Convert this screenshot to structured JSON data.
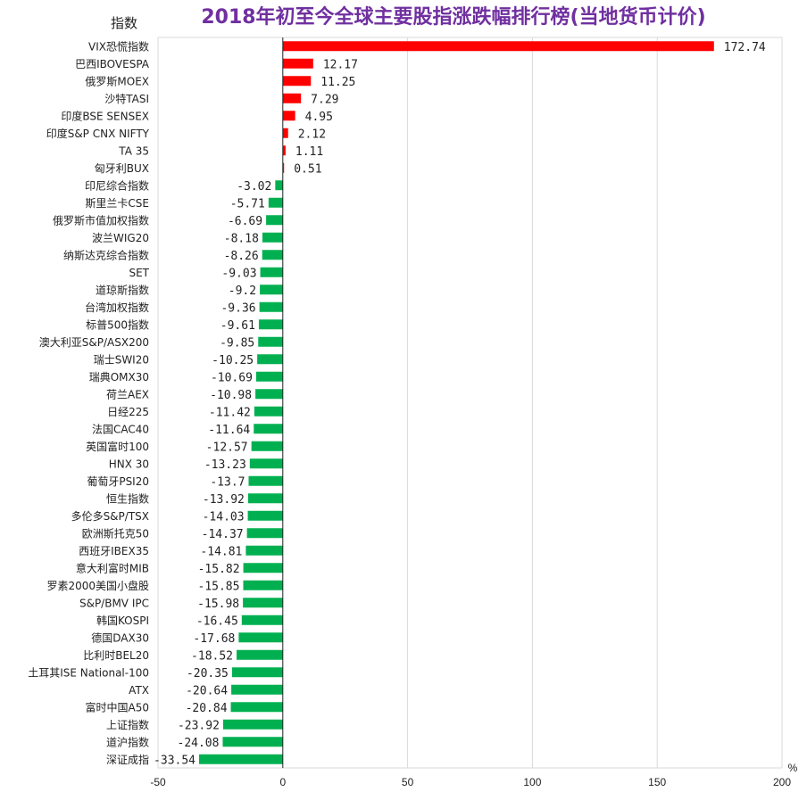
{
  "chart_data": {
    "type": "bar",
    "orientation": "horizontal",
    "title": "2018年初至今全球主要股指涨跌幅排行榜(当地货币计价)",
    "ylabel": "指数",
    "xlabel": "%",
    "xlim": [
      -50,
      200
    ],
    "xticks": [
      -50,
      0,
      50,
      100,
      150,
      200
    ],
    "grid": "vertical",
    "colors": {
      "positive": "#ff0000",
      "negative": "#00b050",
      "title": "#7030a0"
    },
    "categories": [
      "VIX恐慌指数",
      "巴西IBOVESPA",
      "俄罗斯MOEX",
      "沙特TASI",
      "印度BSE SENSEX",
      "印度S&P CNX NIFTY",
      "TA 35",
      "匈牙利BUX",
      "印尼综合指数",
      "斯里兰卡CSE",
      "俄罗斯市值加权指数",
      "波兰WIG20",
      "纳斯达克综合指数",
      "SET",
      "道琼斯指数",
      "台湾加权指数",
      "标普500指数",
      "澳大利亚S&P/ASX200",
      "瑞士SWI20",
      "瑞典OMX30",
      "荷兰AEX",
      "日经225",
      "法国CAC40",
      "英国富时100",
      "HNX 30",
      "葡萄牙PSI20",
      "恒生指数",
      "多伦多S&P/TSX",
      "欧洲斯托克50",
      "西班牙IBEX35",
      "意大利富时MIB",
      "罗素2000美国小盘股",
      "S&P/BMV IPC",
      "韩国KOSPI",
      "德国DAX30",
      "比利时BEL20",
      "土耳其ISE National-100",
      "ATX",
      "富时中国A50",
      "上证指数",
      "道沪指数",
      "深证成指"
    ],
    "values": [
      172.74,
      12.17,
      11.25,
      7.29,
      4.95,
      2.12,
      1.11,
      0.51,
      -3.02,
      -5.71,
      -6.69,
      -8.18,
      -8.26,
      -9.03,
      -9.2,
      -9.36,
      -9.61,
      -9.85,
      -10.25,
      -10.69,
      -10.98,
      -11.42,
      -11.64,
      -12.57,
      -13.23,
      -13.7,
      -13.92,
      -14.03,
      -14.37,
      -14.81,
      -15.82,
      -15.85,
      -15.98,
      -16.45,
      -17.68,
      -18.52,
      -20.35,
      -20.64,
      -20.84,
      -23.92,
      -24.08,
      -33.54
    ],
    "value_labels": [
      "172.74",
      "12.17",
      "11.25",
      "7.29",
      "4.95",
      "2.12",
      "1.11",
      "0.51",
      "-3.02",
      "-5.71",
      "-6.69",
      "-8.18",
      "-8.26",
      "-9.03",
      "-9.2",
      "-9.36",
      "-9.61",
      "-9.85",
      "-10.25",
      "-10.69",
      "-10.98",
      "-11.42",
      "-11.64",
      "-12.57",
      "-13.23",
      "-13.7",
      "-13.92",
      "-14.03",
      "-14.37",
      "-14.81",
      "-15.82",
      "-15.85",
      "-15.98",
      "-16.45",
      "-17.68",
      "-18.52",
      "-20.35",
      "-20.64",
      "-20.84",
      "-23.92",
      "-24.08",
      "-33.54"
    ]
  }
}
